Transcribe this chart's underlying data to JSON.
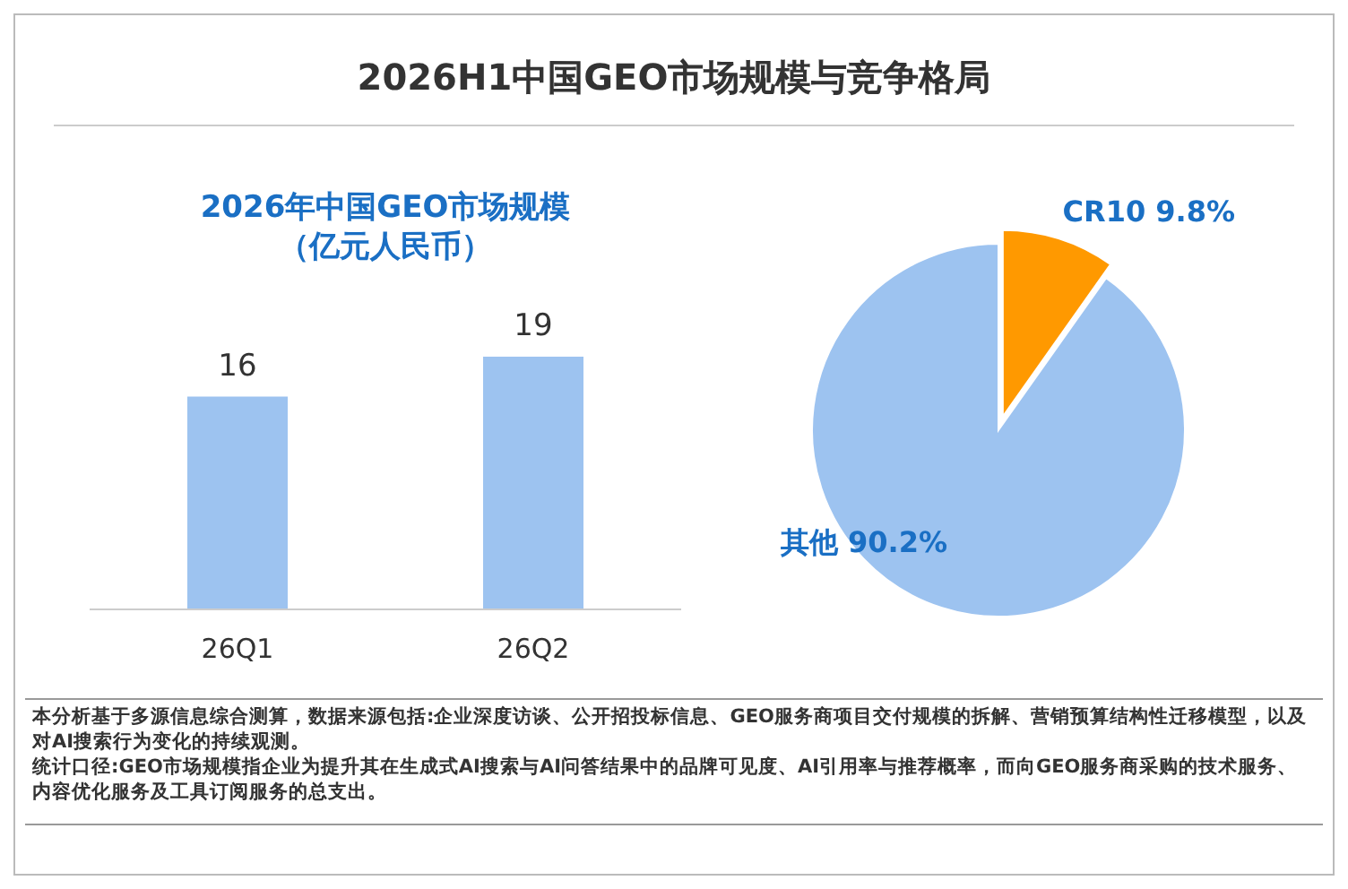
{
  "chart_data": [
    {
      "type": "bar",
      "title": "2026H1中国GEO市场规模与竞争格局",
      "subtitle": "2026年中国GEO市场规模（亿元人民币）",
      "categories": [
        "26Q1",
        "26Q2"
      ],
      "values": [
        16,
        19
      ],
      "color": "#9dc3f0",
      "data_labels": true,
      "annotations": [
        "本分析基于多源信息综合测算，数据来源包括:企业深度访谈、公开招投标信息、GEO服务商项目交付规模的拆解、营销预算结构性迁移模型，以及对AI搜索行为变化的持续观测。",
        "统计口径:GEO市场规模指企业为提升其在生成式AI搜索与AI问答结果中的品牌可见度、AI引用率与推荐概率，而向GEO服务商采购的技术服务、内容优化服务及工具订阅服务的总支出。"
      ]
    },
    {
      "type": "pie",
      "categories": [
        "CR10",
        "其他"
      ],
      "values": [
        9.8,
        90.2
      ],
      "value_labels": [
        "9.8%",
        "90.2%"
      ],
      "colors": [
        "#ff9900",
        "#9dc3f0"
      ]
    }
  ]
}
